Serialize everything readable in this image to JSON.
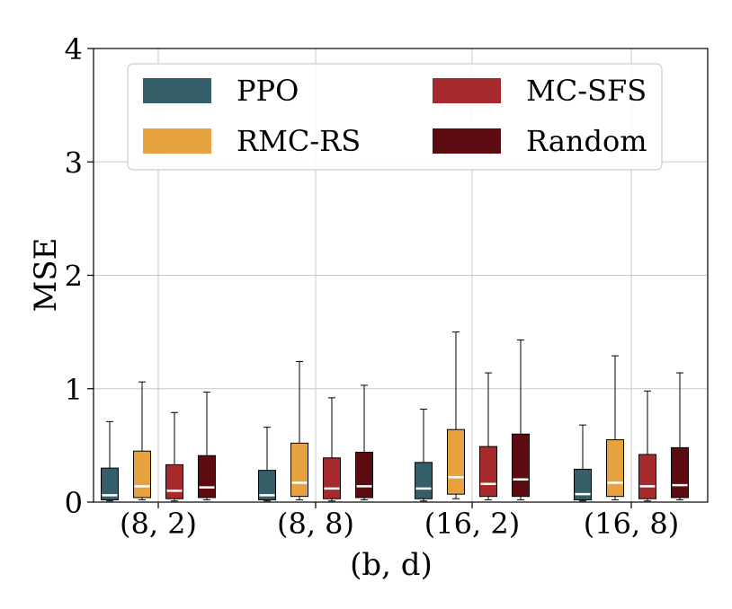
{
  "chart_data": {
    "type": "boxplot",
    "title": "",
    "xlabel": "(b, d)",
    "ylabel": "MSE",
    "ylim": [
      0,
      4
    ],
    "yticks": [
      "0",
      "1",
      "2",
      "3",
      "4"
    ],
    "grid": true,
    "legend_position": "top",
    "categories": [
      "(8, 2)",
      "(8, 8)",
      "(16, 2)",
      "(16, 8)"
    ],
    "series": [
      {
        "name": "PPO",
        "color": "#355e6b",
        "boxes": [
          {
            "whisker_low": 0.01,
            "q1": 0.02,
            "median": 0.06,
            "q3": 0.3,
            "whisker_high": 0.71
          },
          {
            "whisker_low": 0.01,
            "q1": 0.02,
            "median": 0.06,
            "q3": 0.28,
            "whisker_high": 0.66
          },
          {
            "whisker_low": 0.01,
            "q1": 0.03,
            "median": 0.12,
            "q3": 0.35,
            "whisker_high": 0.82
          },
          {
            "whisker_low": 0.01,
            "q1": 0.02,
            "median": 0.07,
            "q3": 0.29,
            "whisker_high": 0.68
          }
        ]
      },
      {
        "name": "RMC-RS",
        "color": "#e5a23f",
        "boxes": [
          {
            "whisker_low": 0.02,
            "q1": 0.04,
            "median": 0.14,
            "q3": 0.45,
            "whisker_high": 1.06
          },
          {
            "whisker_low": 0.02,
            "q1": 0.05,
            "median": 0.17,
            "q3": 0.52,
            "whisker_high": 1.24
          },
          {
            "whisker_low": 0.03,
            "q1": 0.07,
            "median": 0.22,
            "q3": 0.64,
            "whisker_high": 1.5
          },
          {
            "whisker_low": 0.02,
            "q1": 0.05,
            "median": 0.17,
            "q3": 0.55,
            "whisker_high": 1.29
          }
        ]
      },
      {
        "name": "MC-SFS",
        "color": "#a62a2c",
        "boxes": [
          {
            "whisker_low": 0.01,
            "q1": 0.03,
            "median": 0.1,
            "q3": 0.33,
            "whisker_high": 0.79
          },
          {
            "whisker_low": 0.01,
            "q1": 0.03,
            "median": 0.12,
            "q3": 0.39,
            "whisker_high": 0.92
          },
          {
            "whisker_low": 0.02,
            "q1": 0.05,
            "median": 0.16,
            "q3": 0.49,
            "whisker_high": 1.14
          },
          {
            "whisker_low": 0.01,
            "q1": 0.03,
            "median": 0.14,
            "q3": 0.42,
            "whisker_high": 0.98
          }
        ]
      },
      {
        "name": "Random",
        "color": "#5c0c10",
        "boxes": [
          {
            "whisker_low": 0.02,
            "q1": 0.04,
            "median": 0.13,
            "q3": 0.41,
            "whisker_high": 0.97
          },
          {
            "whisker_low": 0.02,
            "q1": 0.04,
            "median": 0.14,
            "q3": 0.44,
            "whisker_high": 1.03
          },
          {
            "whisker_low": 0.02,
            "q1": 0.05,
            "median": 0.2,
            "q3": 0.6,
            "whisker_high": 1.43
          },
          {
            "whisker_low": 0.02,
            "q1": 0.04,
            "median": 0.15,
            "q3": 0.48,
            "whisker_high": 1.14
          }
        ]
      }
    ]
  }
}
